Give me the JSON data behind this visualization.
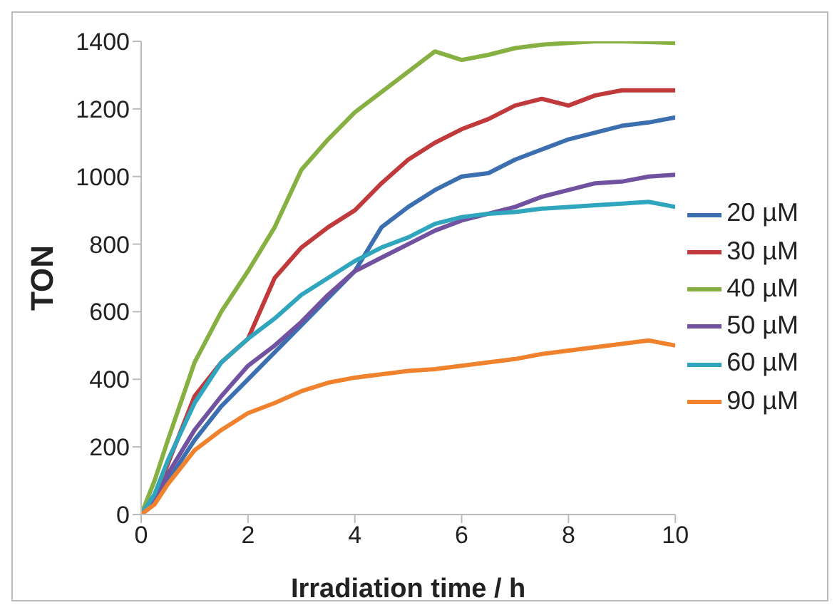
{
  "chart_data": {
    "type": "line",
    "xlabel": "Irradiation time / h",
    "ylabel": "TON",
    "x": [
      0,
      0.25,
      0.5,
      1,
      1.5,
      2,
      2.5,
      3,
      3.5,
      4,
      4.5,
      5,
      5.5,
      6,
      6.5,
      7,
      7.5,
      8,
      8.5,
      9,
      9.5,
      10
    ],
    "series": [
      {
        "name": "20 µM",
        "color": "#3c6fb0",
        "values": [
          0,
          40,
          100,
          220,
          320,
          400,
          480,
          560,
          640,
          720,
          850,
          910,
          960,
          1000,
          1010,
          1050,
          1080,
          1110,
          1130,
          1150,
          1160,
          1175
        ]
      },
      {
        "name": "30 µM",
        "color": "#c0393b",
        "values": [
          0,
          50,
          150,
          350,
          450,
          520,
          700,
          790,
          850,
          900,
          980,
          1050,
          1100,
          1140,
          1170,
          1210,
          1230,
          1210,
          1240,
          1255,
          1255,
          1255
        ]
      },
      {
        "name": "40 µM",
        "color": "#86b042",
        "values": [
          0,
          100,
          220,
          450,
          600,
          720,
          850,
          1020,
          1110,
          1190,
          1250,
          1310,
          1370,
          1345,
          1360,
          1380,
          1390,
          1395,
          1400,
          1400,
          1398,
          1395
        ]
      },
      {
        "name": "50 µM",
        "color": "#7152a0",
        "values": [
          0,
          40,
          120,
          250,
          350,
          440,
          500,
          570,
          650,
          720,
          760,
          800,
          840,
          870,
          890,
          910,
          940,
          960,
          980,
          985,
          1000,
          1005
        ]
      },
      {
        "name": "60 µM",
        "color": "#2fa6bd",
        "values": [
          0,
          60,
          160,
          330,
          450,
          520,
          580,
          650,
          700,
          750,
          790,
          820,
          860,
          880,
          890,
          895,
          905,
          910,
          915,
          920,
          925,
          910
        ]
      },
      {
        "name": "90 µM",
        "color": "#f0822e",
        "values": [
          0,
          30,
          90,
          190,
          250,
          300,
          330,
          365,
          390,
          405,
          415,
          425,
          430,
          440,
          450,
          460,
          475,
          485,
          495,
          505,
          515,
          500
        ]
      }
    ],
    "xlim": [
      0,
      10
    ],
    "xticks": [
      0,
      2,
      4,
      6,
      8,
      10
    ],
    "ylim": [
      0,
      1400
    ],
    "yticks": [
      0,
      200,
      400,
      600,
      800,
      1000,
      1200,
      1400
    ],
    "grid": false,
    "legend": "right",
    "marker": "none",
    "line_style": "solid"
  }
}
